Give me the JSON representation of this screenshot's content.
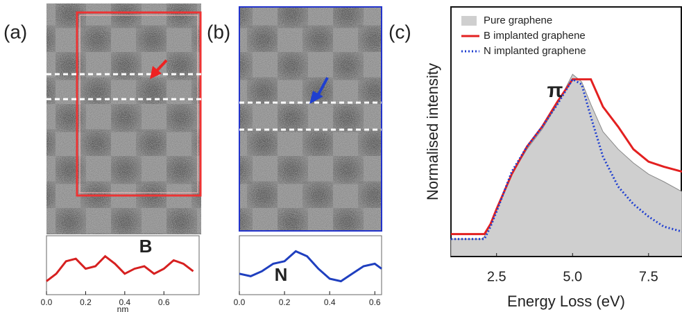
{
  "panels": [
    {
      "label": "(a)"
    },
    {
      "label": "(b)"
    },
    {
      "label": "(c)"
    }
  ],
  "chart_data": [
    {
      "type": "line",
      "xlabel": "nm",
      "annotation": "B",
      "x": [
        0,
        0.05,
        0.1,
        0.15,
        0.2,
        0.25,
        0.3,
        0.35,
        0.4,
        0.45,
        0.5,
        0.55,
        0.6,
        0.65,
        0.7,
        0.75
      ],
      "series": [
        {
          "color": "#d62020",
          "values": [
            0.2,
            0.35,
            0.6,
            0.65,
            0.45,
            0.5,
            0.7,
            0.55,
            0.35,
            0.45,
            0.5,
            0.35,
            0.45,
            0.62,
            0.55,
            0.4
          ]
        }
      ],
      "xlim": [
        0,
        0.78
      ],
      "ylim": [
        0,
        1
      ],
      "xticks": [
        {
          "value": 0,
          "label": "0.0"
        },
        0.2,
        0.4,
        0.6
      ]
    },
    {
      "type": "line",
      "annotation": "N",
      "x": [
        0,
        0.05,
        0.1,
        0.15,
        0.2,
        0.25,
        0.3,
        0.35,
        0.4,
        0.45,
        0.5,
        0.55,
        0.6,
        0.63
      ],
      "series": [
        {
          "color": "#1f3fbf",
          "values": [
            0.35,
            0.3,
            0.4,
            0.55,
            0.6,
            0.8,
            0.7,
            0.45,
            0.25,
            0.2,
            0.35,
            0.5,
            0.55,
            0.45
          ]
        }
      ],
      "xlim": [
        0,
        0.63
      ],
      "ylim": [
        0,
        1
      ],
      "xticks": [
        {
          "value": 0,
          "label": "0.0"
        },
        0.2,
        0.4,
        0.6
      ]
    },
    {
      "type": "line",
      "xlabel": "Energy Loss (eV)",
      "ylabel": "Normalised intensity",
      "annotation": "π",
      "legend": "top-left",
      "x": [
        1.0,
        1.5,
        2.0,
        2.1,
        2.3,
        2.5,
        3.0,
        3.5,
        4.0,
        4.5,
        5.0,
        5.3,
        5.6,
        6.0,
        6.5,
        7.0,
        7.5,
        8.0,
        8.6
      ],
      "series": [
        {
          "name": "Pure graphene",
          "color": "#cfcfcf",
          "style": "area",
          "values": [
            0.07,
            0.07,
            0.07,
            0.08,
            0.13,
            0.19,
            0.33,
            0.43,
            0.51,
            0.61,
            0.73,
            0.7,
            0.61,
            0.5,
            0.43,
            0.375,
            0.33,
            0.3,
            0.26
          ]
        },
        {
          "name": "B implanted graphene",
          "color": "#e32020",
          "style": "solid",
          "values": [
            0.09,
            0.09,
            0.09,
            0.09,
            0.13,
            0.19,
            0.33,
            0.44,
            0.52,
            0.62,
            0.71,
            0.71,
            0.71,
            0.6,
            0.52,
            0.43,
            0.38,
            0.36,
            0.34
          ]
        },
        {
          "name": "N implanted graphene",
          "color": "#1f3fd0",
          "style": "dotted",
          "values": [
            0.07,
            0.07,
            0.07,
            0.07,
            0.12,
            0.18,
            0.34,
            0.44,
            0.52,
            0.61,
            0.71,
            0.69,
            0.56,
            0.4,
            0.28,
            0.21,
            0.16,
            0.12,
            0.1
          ]
        }
      ],
      "xlim": [
        1,
        8.6
      ],
      "ylim": [
        0,
        1
      ],
      "xticks": [
        2.5,
        {
          "value": 5,
          "label": "5.0"
        },
        7.5
      ]
    }
  ]
}
